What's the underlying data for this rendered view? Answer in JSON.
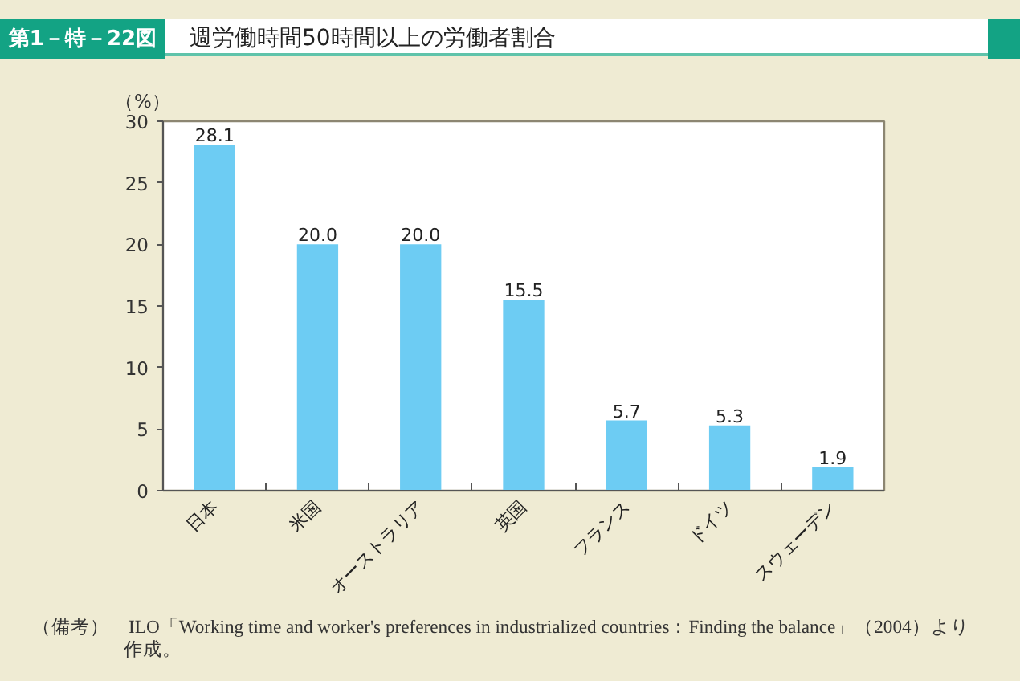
{
  "chart_data": {
    "type": "bar",
    "title": "週労働時間50時間以上の労働者割合",
    "ylabel": "（%）",
    "categories": [
      "日本",
      "米国",
      "オーストラリア",
      "英国",
      "フランス",
      "ドイツ",
      "スウェーデン"
    ],
    "values": [
      28.1,
      20.0,
      20.0,
      15.5,
      5.7,
      5.3,
      1.9
    ],
    "value_labels": [
      "28.1",
      "20.0",
      "20.0",
      "15.5",
      "5.7",
      "5.3",
      "1.9"
    ],
    "color": "#6dccf3",
    "ylim": [
      0,
      30
    ],
    "yticks": [
      0,
      5,
      10,
      15,
      20,
      25,
      30
    ],
    "grid": false,
    "annotations": [
      "第1－特－22図",
      "（備考）　ILO「Working time and worker's preferences in industrialized countries：Finding the balance」（2004）より作成。"
    ]
  }
}
